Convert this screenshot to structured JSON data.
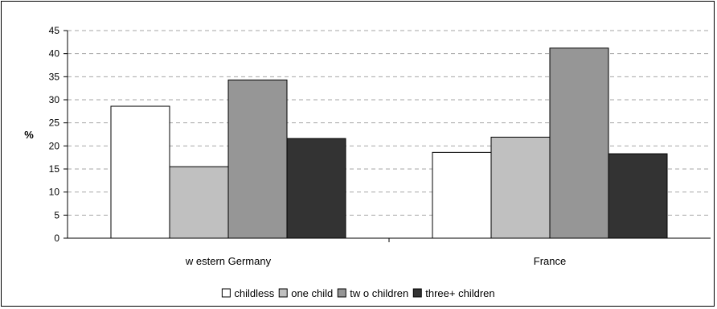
{
  "chart_data": {
    "type": "bar",
    "categories": [
      "w estern Germany",
      "France"
    ],
    "series": [
      {
        "name": "childless",
        "values": [
          28.6,
          18.6
        ],
        "color": "#ffffff"
      },
      {
        "name": "one child",
        "values": [
          15.5,
          21.9
        ],
        "color": "#c0c0c0"
      },
      {
        "name": "tw o children",
        "values": [
          34.3,
          41.2
        ],
        "color": "#969696"
      },
      {
        "name": "three+ children",
        "values": [
          21.6,
          18.3
        ],
        "color": "#333333"
      }
    ],
    "title": "",
    "xlabel": "",
    "ylabel": "%",
    "ylim": [
      0,
      45
    ],
    "yticks": [
      "0",
      "5",
      "10",
      "15",
      "20",
      "25",
      "30",
      "35",
      "40",
      "45"
    ],
    "grid": true,
    "legend_position": "bottom"
  }
}
